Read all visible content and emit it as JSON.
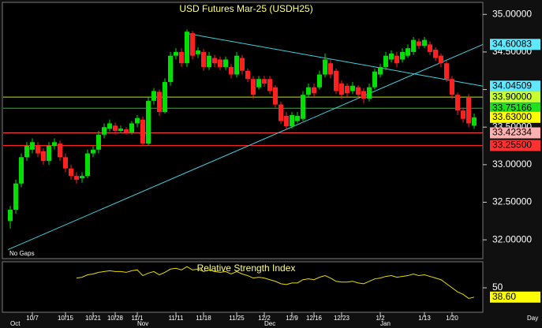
{
  "chart_data": {
    "type": "candlestick",
    "title": "USD Futures Mar-25 (USDH25)",
    "note": "No Gaps",
    "x_unit": "Day",
    "up_color": "#00e000",
    "down_color": "#ff2020",
    "categories": [
      null,
      null,
      null,
      null,
      "10/7",
      null,
      null,
      null,
      null,
      null,
      "10/15",
      null,
      null,
      null,
      null,
      "10/21",
      null,
      null,
      null,
      "10/28",
      null,
      null,
      null,
      "11/1",
      null,
      null,
      null,
      null,
      null,
      null,
      "11/11",
      null,
      null,
      null,
      null,
      "11/18",
      null,
      null,
      null,
      null,
      null,
      "11/25",
      null,
      null,
      null,
      null,
      "12/2",
      null,
      null,
      null,
      null,
      "12/9",
      null,
      null,
      null,
      "12/16",
      null,
      null,
      null,
      null,
      "12/23",
      null,
      null,
      null,
      null,
      null,
      null,
      "1/2",
      null,
      null,
      null,
      null,
      null,
      null,
      null,
      "1/13",
      null,
      null,
      null,
      null,
      "1/20",
      null,
      null,
      null,
      null
    ],
    "months": [
      "Oct",
      null,
      null,
      null,
      null,
      null,
      null,
      null,
      null,
      null,
      null,
      null,
      null,
      null,
      null,
      null,
      null,
      null,
      null,
      null,
      null,
      null,
      null,
      "Nov",
      null,
      null,
      null,
      null,
      null,
      null,
      null,
      null,
      null,
      null,
      null,
      null,
      null,
      null,
      null,
      null,
      null,
      null,
      null,
      null,
      null,
      null,
      "Dec",
      null,
      null,
      null,
      null,
      null,
      null,
      null,
      null,
      null,
      null,
      null,
      null,
      null,
      null,
      null,
      null,
      null,
      null,
      null,
      null,
      "Jan",
      null,
      null,
      null,
      null,
      null,
      null,
      null,
      null,
      null,
      null,
      null,
      null,
      null,
      null,
      null,
      null,
      null
    ],
    "ohlc": [
      [
        32.25,
        32.45,
        32.15,
        32.4
      ],
      [
        32.4,
        32.8,
        32.35,
        32.75
      ],
      [
        32.75,
        33.15,
        32.7,
        33.1
      ],
      [
        33.1,
        33.3,
        33.05,
        33.25
      ],
      [
        33.2,
        33.35,
        33.15,
        33.3
      ],
      [
        33.25,
        33.3,
        33.1,
        33.15
      ],
      [
        33.18,
        33.22,
        33.0,
        33.05
      ],
      [
        33.05,
        33.3,
        33.0,
        33.25
      ],
      [
        33.25,
        33.35,
        33.2,
        33.3
      ],
      [
        33.28,
        33.32,
        33.05,
        33.1
      ],
      [
        33.1,
        33.15,
        32.9,
        32.95
      ],
      [
        32.95,
        33.0,
        32.8,
        32.85
      ],
      [
        32.85,
        32.9,
        32.75,
        32.8
      ],
      [
        32.82,
        32.9,
        32.76,
        32.85
      ],
      [
        32.85,
        33.2,
        32.82,
        33.15
      ],
      [
        33.15,
        33.25,
        33.1,
        33.2
      ],
      [
        33.2,
        33.45,
        33.15,
        33.4
      ],
      [
        33.4,
        33.55,
        33.35,
        33.5
      ],
      [
        33.48,
        33.6,
        33.44,
        33.55
      ],
      [
        33.52,
        33.56,
        33.4,
        33.45
      ],
      [
        33.45,
        33.52,
        33.42,
        33.48
      ],
      [
        33.47,
        33.5,
        33.4,
        33.43
      ],
      [
        33.43,
        33.58,
        33.4,
        33.55
      ],
      [
        33.55,
        33.66,
        33.5,
        33.62
      ],
      [
        33.6,
        33.64,
        33.25,
        33.28
      ],
      [
        33.28,
        33.9,
        33.25,
        33.85
      ],
      [
        33.85,
        34.02,
        33.8,
        33.98
      ],
      [
        33.97,
        34.0,
        33.65,
        33.7
      ],
      [
        33.7,
        34.15,
        33.68,
        34.1
      ],
      [
        34.1,
        34.5,
        34.05,
        34.45
      ],
      [
        34.45,
        34.55,
        34.4,
        34.5
      ],
      [
        34.5,
        34.55,
        34.3,
        34.35
      ],
      [
        34.35,
        34.8,
        34.3,
        34.77
      ],
      [
        34.75,
        34.78,
        34.4,
        34.45
      ],
      [
        34.47,
        34.56,
        34.42,
        34.52
      ],
      [
        34.5,
        34.54,
        34.25,
        34.3
      ],
      [
        34.3,
        34.5,
        34.26,
        34.45
      ],
      [
        34.42,
        34.46,
        34.3,
        34.35
      ],
      [
        34.4,
        34.44,
        34.26,
        34.3
      ],
      [
        34.3,
        34.44,
        34.26,
        34.4
      ],
      [
        34.3,
        34.34,
        34.15,
        34.2
      ],
      [
        34.2,
        34.5,
        34.16,
        34.45
      ],
      [
        34.42,
        34.46,
        34.2,
        34.25
      ],
      [
        34.25,
        34.28,
        34.1,
        34.14
      ],
      [
        34.14,
        34.18,
        33.88,
        33.93
      ],
      [
        34.03,
        34.18,
        34.0,
        34.14
      ],
      [
        34.14,
        34.18,
        34.04,
        34.08
      ],
      [
        34.14,
        34.18,
        33.94,
        33.98
      ],
      [
        34.03,
        34.06,
        33.76,
        33.8
      ],
      [
        33.8,
        33.84,
        33.54,
        33.58
      ],
      [
        33.65,
        33.7,
        33.46,
        33.51
      ],
      [
        33.51,
        33.7,
        33.48,
        33.66
      ],
      [
        33.58,
        33.7,
        33.55,
        33.65
      ],
      [
        33.61,
        33.98,
        33.58,
        33.93
      ],
      [
        33.93,
        34.08,
        33.9,
        34.03
      ],
      [
        34.03,
        34.08,
        33.9,
        33.95
      ],
      [
        34.03,
        34.25,
        34.0,
        34.2
      ],
      [
        34.2,
        34.48,
        34.16,
        34.4
      ],
      [
        34.35,
        34.4,
        34.15,
        34.2
      ],
      [
        34.25,
        34.28,
        33.94,
        33.98
      ],
      [
        34.08,
        34.12,
        33.88,
        33.93
      ],
      [
        34.05,
        34.08,
        33.9,
        33.95
      ],
      [
        33.98,
        34.1,
        33.94,
        34.05
      ],
      [
        34.03,
        34.06,
        33.88,
        33.93
      ],
      [
        33.98,
        34.02,
        33.82,
        33.88
      ],
      [
        33.88,
        34.08,
        33.84,
        34.03
      ],
      [
        34.03,
        34.28,
        34.0,
        34.24
      ],
      [
        34.2,
        34.34,
        34.16,
        34.3
      ],
      [
        34.3,
        34.5,
        34.26,
        34.45
      ],
      [
        34.4,
        34.52,
        34.36,
        34.48
      ],
      [
        34.45,
        34.5,
        34.3,
        34.35
      ],
      [
        34.4,
        34.55,
        34.36,
        34.5
      ],
      [
        34.45,
        34.6,
        34.42,
        34.55
      ],
      [
        34.5,
        34.7,
        34.46,
        34.66
      ],
      [
        34.64,
        34.68,
        34.54,
        34.58
      ],
      [
        34.58,
        34.7,
        34.55,
        34.66
      ],
      [
        34.6,
        34.64,
        34.46,
        34.5
      ],
      [
        34.53,
        34.56,
        34.38,
        34.42
      ],
      [
        34.45,
        34.48,
        34.3,
        34.35
      ],
      [
        34.35,
        34.38,
        34.1,
        34.14
      ],
      [
        34.14,
        34.18,
        33.88,
        33.93
      ],
      [
        33.93,
        33.96,
        33.66,
        33.72
      ],
      [
        33.72,
        33.76,
        33.56,
        33.61
      ],
      [
        33.9,
        33.94,
        33.5,
        33.55
      ],
      [
        33.52,
        33.68,
        33.48,
        33.63
      ]
    ],
    "ylim": [
      31.75,
      35.16
    ],
    "yticks": [
      {
        "value": 32,
        "label": "32.00000"
      },
      {
        "value": 32.5,
        "label": "32.50000"
      },
      {
        "value": 33,
        "label": "33.00000"
      },
      {
        "value": 33.5,
        "label": "33.50000"
      },
      {
        "value": 34,
        "label": "34.00000"
      },
      {
        "value": 34.5,
        "label": "34.50000"
      },
      {
        "value": 35,
        "label": "35.00000"
      }
    ],
    "trendlines": [
      {
        "from": [
          -0.4,
          31.87
        ],
        "to": [
          85.6,
          34.60083
        ],
        "value": 34.60083,
        "label": "34.60083",
        "color": "#40d0e0",
        "tag_color": "#60e8ff"
      },
      {
        "from": [
          31.7,
          34.75
        ],
        "to": [
          85.6,
          34.04509
        ],
        "value": 34.04509,
        "label": "34.04509",
        "color": "#40d0e0",
        "tag_color": "#60e8ff"
      }
    ],
    "levels": [
      {
        "value": 33.9,
        "label": "33.90000",
        "color": "#b8f000",
        "tag_color": "#c8ff30"
      },
      {
        "value": 33.75166,
        "label": "33.75166",
        "color": "#00d000",
        "tag_color": "#20e020"
      },
      {
        "value": 33.42334,
        "label": "33.42334",
        "color": "#ff4040",
        "tag_color": "#ffb0b0"
      },
      {
        "value": 33.255,
        "label": "33.25500",
        "color": "#ff2020",
        "tag_color": "#ff3030"
      }
    ],
    "last_price": {
      "value": 33.63,
      "label": "33.63000",
      "tag_color": "#ffff00"
    },
    "rsi": {
      "title": "Relative Strength Index",
      "color": "#e8dc00",
      "ylim": [
        20,
        82
      ],
      "yticks": [
        50
      ],
      "values": [
        null,
        null,
        null,
        null,
        null,
        null,
        null,
        null,
        null,
        null,
        null,
        null,
        62,
        63,
        66,
        67,
        69,
        70,
        71,
        70,
        70,
        69,
        71,
        72,
        65,
        68,
        70,
        66,
        69,
        73,
        74,
        72,
        76,
        72,
        73,
        70,
        72,
        70,
        69,
        70,
        67,
        70,
        67,
        65,
        62,
        63,
        62,
        60,
        58,
        55,
        54,
        56,
        56,
        60,
        61,
        60,
        63,
        65,
        62,
        58,
        57,
        57,
        58,
        56,
        55,
        58,
        61,
        62,
        64,
        65,
        63,
        64,
        65,
        67,
        65,
        66,
        64,
        62,
        60,
        55,
        50,
        45,
        42,
        37,
        38.6
      ],
      "last": {
        "value": 38.6,
        "label": "38.60",
        "tag_color": "#ffff00"
      }
    }
  }
}
